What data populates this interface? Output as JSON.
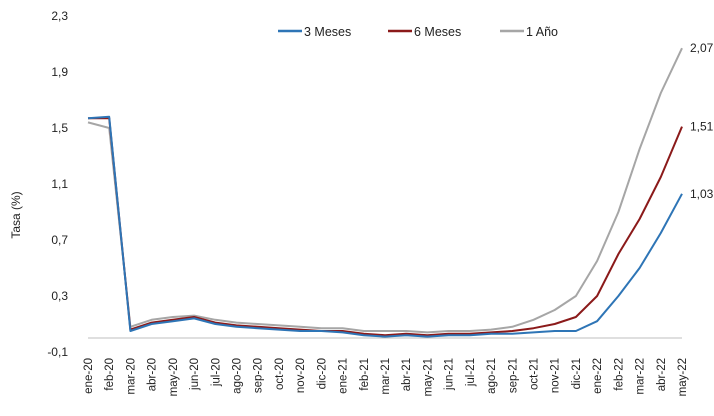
{
  "chart_data": {
    "type": "line",
    "title": "",
    "ylabel": "Tasa (%)",
    "xlabel": "",
    "ylim": [
      -0.1,
      2.3
    ],
    "yticks": [
      "-0,1",
      "0,3",
      "0,7",
      "1,1",
      "1,5",
      "1,9",
      "2,3"
    ],
    "ytick_values": [
      -0.1,
      0.3,
      0.7,
      1.1,
      1.5,
      1.9,
      2.3
    ],
    "x": [
      "ene-20",
      "feb-20",
      "mar-20",
      "abr-20",
      "may-20",
      "jun-20",
      "jul-20",
      "ago-20",
      "sep-20",
      "oct-20",
      "nov-20",
      "dic-20",
      "ene-21",
      "feb-21",
      "mar-21",
      "abr-21",
      "may-21",
      "jun-21",
      "jul-21",
      "ago-21",
      "sep-21",
      "oct-21",
      "nov-21",
      "dic-21",
      "ene-22",
      "feb-22",
      "mar-22",
      "abr-22",
      "may-22"
    ],
    "grid": false,
    "legend_position": "top",
    "series": [
      {
        "name": "3 Meses",
        "color": "#2E75B6",
        "values": [
          1.57,
          1.58,
          0.05,
          0.1,
          0.12,
          0.14,
          0.1,
          0.08,
          0.07,
          0.06,
          0.05,
          0.05,
          0.04,
          0.02,
          0.01,
          0.02,
          0.01,
          0.02,
          0.02,
          0.03,
          0.03,
          0.04,
          0.05,
          0.05,
          0.12,
          0.3,
          0.5,
          0.75,
          1.03
        ],
        "end_label": "1,03"
      },
      {
        "name": "6 Meses",
        "color": "#8B1A1A",
        "values": [
          1.57,
          1.57,
          0.06,
          0.11,
          0.13,
          0.15,
          0.11,
          0.09,
          0.08,
          0.07,
          0.06,
          0.05,
          0.05,
          0.03,
          0.02,
          0.03,
          0.02,
          0.03,
          0.03,
          0.04,
          0.05,
          0.07,
          0.1,
          0.15,
          0.3,
          0.6,
          0.85,
          1.15,
          1.51
        ],
        "end_label": "1,51"
      },
      {
        "name": "1 Año",
        "color": "#A6A6A6",
        "values": [
          1.54,
          1.5,
          0.08,
          0.13,
          0.15,
          0.16,
          0.13,
          0.11,
          0.1,
          0.09,
          0.08,
          0.07,
          0.07,
          0.05,
          0.05,
          0.05,
          0.04,
          0.05,
          0.05,
          0.06,
          0.08,
          0.13,
          0.2,
          0.3,
          0.55,
          0.9,
          1.35,
          1.75,
          2.07
        ],
        "end_label": "2,07"
      }
    ]
  }
}
